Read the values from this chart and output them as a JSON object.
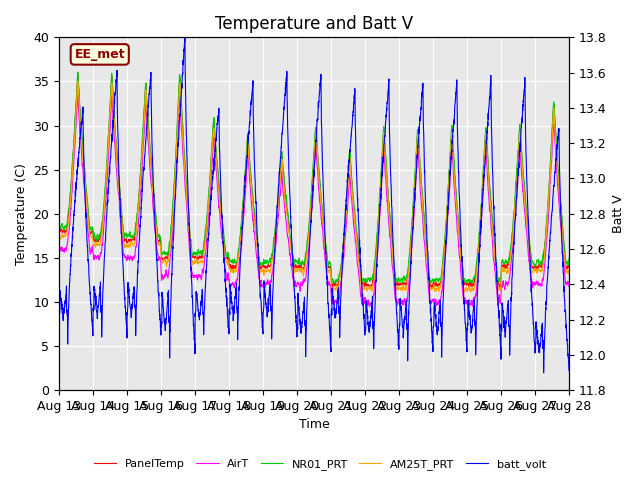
{
  "title": "Temperature and Batt V",
  "xlabel": "Time",
  "ylabel_left": "Temperature (C)",
  "ylabel_right": "Batt V",
  "ylim_left": [
    0,
    40
  ],
  "ylim_right": [
    11.8,
    13.8
  ],
  "xlim": [
    0,
    15
  ],
  "x_tick_labels": [
    "Aug 13",
    "Aug 14",
    "Aug 15",
    "Aug 16",
    "Aug 17",
    "Aug 18",
    "Aug 19",
    "Aug 20",
    "Aug 21",
    "Aug 22",
    "Aug 23",
    "Aug 24",
    "Aug 25",
    "Aug 26",
    "Aug 27",
    "Aug 28"
  ],
  "station_label": "EE_met",
  "background_color": "#e8e8e8",
  "legend_entries": [
    "PanelTemp",
    "AirT",
    "NR01_PRT",
    "AM25T_PRT",
    "batt_volt"
  ],
  "line_colors": [
    "red",
    "#ff00ff",
    "#00cc00",
    "orange",
    "blue"
  ],
  "title_fontsize": 12,
  "axis_fontsize": 9,
  "legend_fontsize": 8,
  "yticks_left": [
    0,
    5,
    10,
    15,
    20,
    25,
    30,
    35,
    40
  ],
  "yticks_right": [
    11.8,
    12.0,
    12.2,
    12.4,
    12.6,
    12.8,
    13.0,
    13.2,
    13.4,
    13.6,
    13.8
  ],
  "day_peaks": [
    36,
    36,
    35,
    36,
    31,
    29,
    27,
    30,
    27,
    30,
    30,
    30,
    30,
    30,
    33
  ],
  "day_mins": [
    18,
    17,
    17,
    15,
    15,
    14,
    14,
    14,
    12,
    12,
    12,
    12,
    12,
    14,
    14
  ],
  "batt_peaks": [
    13.4,
    13.6,
    13.6,
    13.8,
    13.4,
    13.55,
    13.6,
    13.6,
    13.5,
    13.55,
    13.55,
    13.55,
    13.55,
    13.55,
    13.3
  ],
  "batt_mins": [
    12.1,
    12.1,
    12.1,
    12.0,
    12.1,
    12.1,
    12.1,
    12.0,
    12.1,
    12.0,
    12.0,
    12.0,
    12.0,
    12.0,
    11.9
  ]
}
